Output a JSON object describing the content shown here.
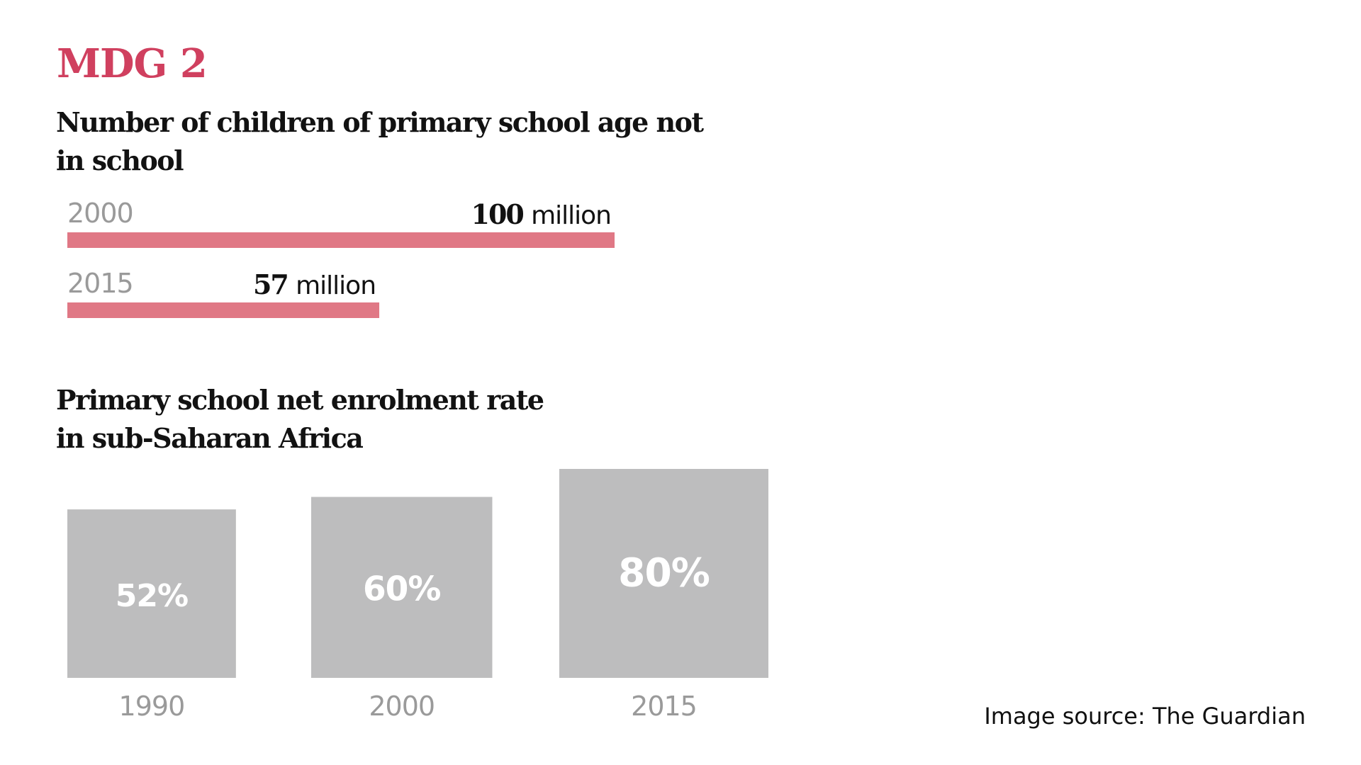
{
  "headline": "MDG 2",
  "colors": {
    "headline": "#d0405f",
    "bar": "#e07885",
    "box": "#bdbdbe",
    "year_text": "#9a9a9a",
    "label_dark": "#111111",
    "box_label": "#ffffff"
  },
  "chart_data": [
    {
      "type": "bar",
      "orientation": "horizontal",
      "title_lines": [
        "Number of children of primary school age not",
        "in school"
      ],
      "categories": [
        "2000",
        "2015"
      ],
      "values": [
        100,
        57
      ],
      "value_labels": [
        {
          "number": "100",
          "unit": "million"
        },
        {
          "number": "57",
          "unit": "million"
        }
      ],
      "unit": "million"
    },
    {
      "type": "bar",
      "title_lines": [
        "Primary school net enrolment rate",
        "in sub-Saharan Africa"
      ],
      "categories": [
        "1990",
        "2000",
        "2015"
      ],
      "values": [
        52,
        60,
        80
      ],
      "value_labels": [
        "52%",
        "60%",
        "80%"
      ],
      "unit": "%"
    }
  ],
  "source": "Image source: The Guardian"
}
